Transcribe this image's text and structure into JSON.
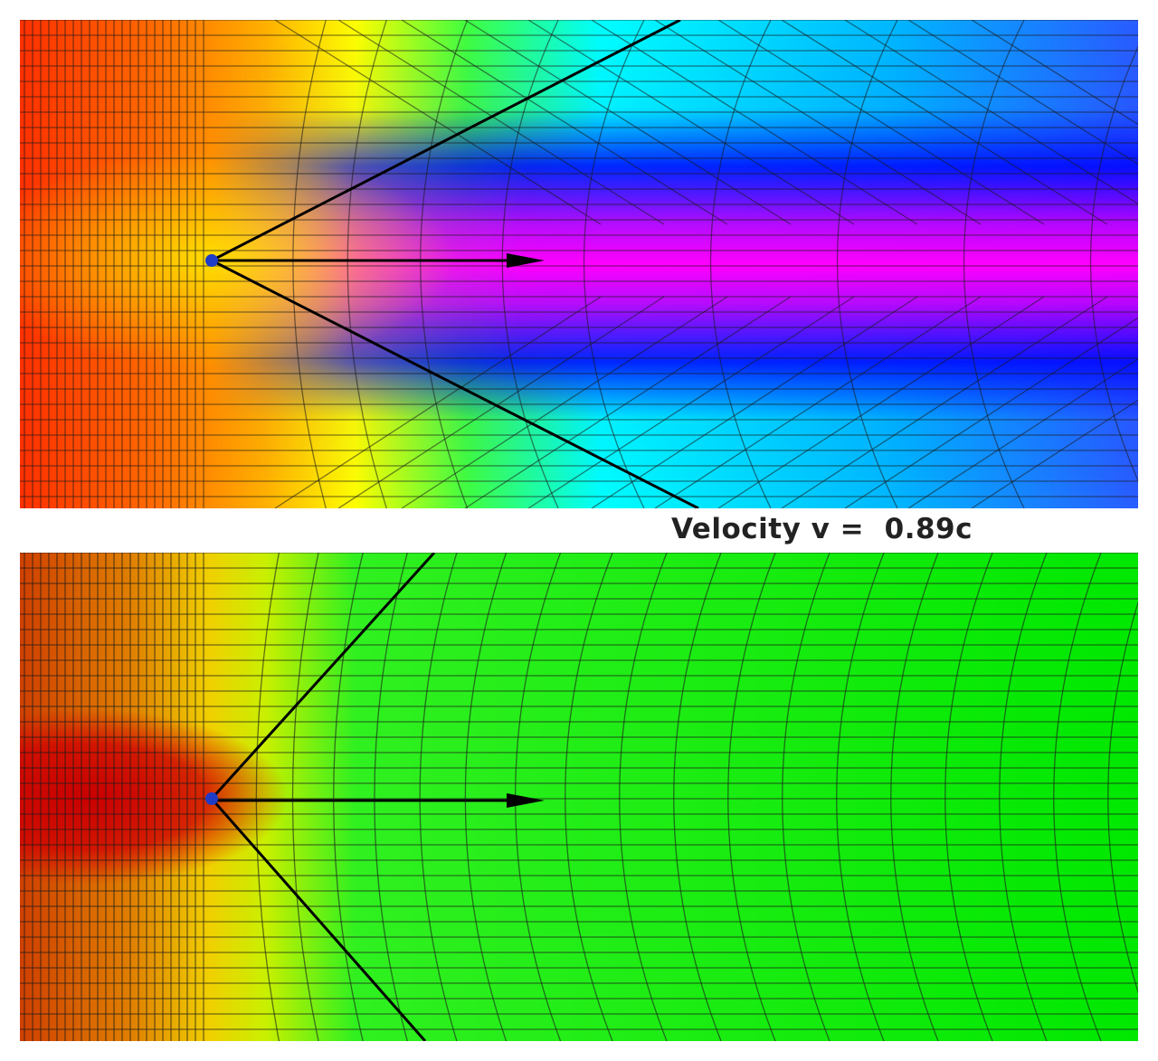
{
  "velocity_label": "Velocity v =  0.89c",
  "velocity_fraction_of_c": 0.89,
  "panels": [
    {
      "id": "top",
      "color_scale": [
        "#ff2a00",
        "#ff7a00",
        "#ffff00",
        "#00ff00",
        "#00ffff",
        "#0000ff",
        "#ff00ff"
      ]
    },
    {
      "id": "bottom",
      "color_scale": [
        "#c80000",
        "#e0a000",
        "#ffff00",
        "#00e600"
      ]
    }
  ],
  "colors": {
    "grid_line": "#1a1a1a",
    "charge": "#1e3cc8",
    "cone_line": "#000000",
    "velocity_arrow": "#000000"
  },
  "icons": {
    "charge": "point-charge",
    "arrow": "velocity-arrow"
  }
}
